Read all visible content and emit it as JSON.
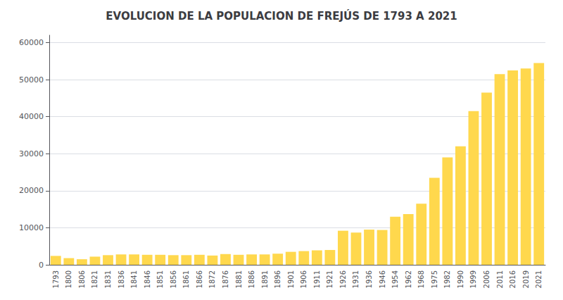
{
  "chart_data": {
    "type": "bar",
    "title": "EVOLUCION DE LA POPULACION DE FREJÚS DE 1793 A 2021",
    "categories": [
      "1793",
      "1800",
      "1806",
      "1821",
      "1831",
      "1836",
      "1841",
      "1846",
      "1851",
      "1856",
      "1861",
      "1866",
      "1872",
      "1876",
      "1881",
      "1886",
      "1891",
      "1896",
      "1901",
      "1906",
      "1911",
      "1921",
      "1926",
      "1931",
      "1936",
      "1946",
      "1954",
      "1962",
      "1968",
      "1975",
      "1982",
      "1990",
      "1999",
      "2006",
      "2011",
      "2016",
      "2019",
      "2021"
    ],
    "values": [
      2400,
      1800,
      1500,
      2200,
      2600,
      2800,
      2800,
      2700,
      2700,
      2600,
      2600,
      2700,
      2500,
      2900,
      2700,
      2800,
      2800,
      3000,
      3500,
      3700,
      3900,
      4000,
      9200,
      8700,
      9500,
      9400,
      13000,
      13700,
      16500,
      23500,
      29000,
      32000,
      41500,
      46500,
      51500,
      52500,
      53000,
      54500
    ],
    "color": "#FFD84D",
    "ylim": [
      0,
      62000
    ],
    "yticks": [
      0,
      10000,
      20000,
      30000,
      40000,
      50000,
      60000
    ],
    "grid": true
  }
}
